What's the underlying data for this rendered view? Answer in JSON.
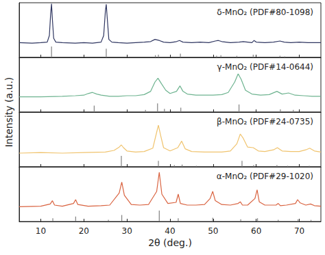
{
  "chart_data": [
    {
      "type": "line",
      "title": "δ-MnO₂ (PDF#80-1098)",
      "xlim": [
        5,
        75
      ],
      "xticks": [
        10,
        20,
        30,
        40,
        50,
        60,
        70
      ],
      "ylim": [
        0,
        100
      ],
      "yticks": [],
      "tick_labels": false,
      "grid": false,
      "series": [
        {
          "type": "line",
          "color": "#2e3560",
          "x": [
            5,
            8,
            10,
            11.5,
            12.0,
            12.3,
            12.5,
            12.7,
            13.0,
            13.5,
            15,
            18,
            20,
            22,
            24,
            24.6,
            25.0,
            25.2,
            25.4,
            25.8,
            26.5,
            28,
            30,
            32,
            34,
            35.5,
            36.5,
            37.5,
            38.5,
            40,
            41.5,
            42.2,
            43,
            45,
            47,
            49,
            50.5,
            51.2,
            52,
            54,
            56,
            57,
            59,
            59.5,
            60,
            62,
            64,
            65.5,
            66.5,
            68,
            70,
            72,
            75
          ],
          "values": [
            27,
            26,
            27,
            28,
            40,
            80,
            98,
            70,
            35,
            28,
            27,
            26,
            27,
            26,
            28,
            40,
            85,
            97,
            75,
            33,
            28,
            27,
            26,
            27,
            28,
            29,
            33,
            31,
            28,
            27,
            29,
            31,
            28,
            27,
            28,
            27,
            30,
            31,
            29,
            27,
            28,
            29,
            27,
            31,
            28,
            27,
            28,
            30,
            28,
            27,
            28,
            27,
            27
          ]
        },
        {
          "type": "bar",
          "color": "#808080",
          "x": [
            12.5,
            25.2,
            36.6,
            37.3,
            42.4,
            50.8,
            51.8,
            55.5,
            59.3,
            65.5,
            66.6
          ],
          "values": [
            20,
            16,
            4,
            5,
            7,
            3,
            4,
            3,
            5,
            3,
            2
          ]
        }
      ]
    },
    {
      "type": "line",
      "title": "γ-MnO₂ (PDF#14-0644)",
      "xlim": [
        5,
        75
      ],
      "xticks": [
        10,
        20,
        30,
        40,
        50,
        60,
        70
      ],
      "ylim": [
        0,
        100
      ],
      "yticks": [],
      "tick_labels": false,
      "grid": false,
      "series": [
        {
          "type": "line",
          "color": "#6db38f",
          "x": [
            5,
            10,
            15,
            18,
            20,
            21,
            22,
            23,
            24,
            26,
            28,
            30,
            32,
            34,
            35.5,
            36.5,
            37.2,
            38,
            39,
            40,
            41.5,
            42.3,
            43,
            44,
            46,
            48,
            50,
            52,
            53.5,
            55,
            55.8,
            56.5,
            57.5,
            59,
            61,
            63,
            64.8,
            66,
            67.5,
            69,
            71,
            73,
            75
          ],
          "values": [
            28,
            28,
            29,
            30,
            31,
            34,
            36,
            33,
            31,
            29,
            29,
            30,
            30,
            32,
            38,
            55,
            62,
            52,
            40,
            34,
            38,
            48,
            38,
            33,
            31,
            31,
            31,
            32,
            36,
            55,
            70,
            60,
            40,
            33,
            31,
            32,
            38,
            33,
            35,
            31,
            30,
            29,
            29
          ]
        },
        {
          "type": "bar",
          "color": "#808080",
          "x": [
            22.4,
            34.3,
            37.1,
            38.7,
            42.5,
            56.0,
            65.6,
            68.6
          ],
          "values": [
            12,
            4,
            16,
            6,
            8,
            14,
            5,
            4
          ]
        }
      ]
    },
    {
      "type": "line",
      "title": "β-MnO₂ (PDF#24-0735)",
      "ylabel": "Intensity (a.u.)",
      "xlim": [
        5,
        75
      ],
      "xticks": [
        10,
        20,
        30,
        40,
        50,
        60,
        70
      ],
      "ylim": [
        0,
        100
      ],
      "yticks": [],
      "tick_labels": false,
      "grid": false,
      "series": [
        {
          "type": "line",
          "color": "#f0c36d",
          "x": [
            5,
            10,
            15,
            20,
            25,
            27,
            28.2,
            28.7,
            29.2,
            30,
            32,
            34,
            36,
            36.8,
            37.3,
            37.8,
            38.5,
            40,
            41.8,
            42.7,
            43.5,
            45,
            48,
            50,
            52,
            54,
            55.5,
            56.3,
            57,
            58,
            59.3,
            60.5,
            62,
            64,
            64.9,
            66,
            68,
            70,
            71.5,
            72.4,
            73.5,
            75
          ],
          "values": [
            25,
            26,
            25,
            26,
            27,
            30,
            36,
            40,
            35,
            29,
            27,
            28,
            34,
            60,
            76,
            58,
            35,
            29,
            35,
            47,
            33,
            28,
            27,
            27,
            27,
            29,
            42,
            60,
            52,
            36,
            35,
            29,
            28,
            31,
            35,
            29,
            28,
            28,
            31,
            34,
            29,
            27
          ]
        },
        {
          "type": "bar",
          "color": "#808080",
          "x": [
            28.7,
            37.3,
            41.0,
            42.8,
            46.1,
            56.7,
            59.4,
            64.8,
            67.3,
            72.3
          ],
          "values": [
            20,
            11,
            3,
            4,
            2,
            11,
            3,
            3,
            2,
            2
          ]
        }
      ]
    },
    {
      "type": "line",
      "title": "α-MnO₂ (PDF#29-1020)",
      "xlabel": "2θ (deg.)",
      "xlim": [
        5,
        75
      ],
      "xticks": [
        10,
        20,
        30,
        40,
        50,
        60,
        70
      ],
      "ylim": [
        0,
        100
      ],
      "yticks": [],
      "tick_labels": "x",
      "grid": false,
      "series": [
        {
          "type": "line",
          "color": "#d9623f",
          "x": [
            5,
            10,
            12.2,
            12.7,
            13.2,
            15,
            17.6,
            18.1,
            18.6,
            21,
            24,
            26,
            28.2,
            28.8,
            29.4,
            31,
            33,
            35,
            36.9,
            37.5,
            38.1,
            39.5,
            41.4,
            41.9,
            42.4,
            44,
            46,
            48,
            49.3,
            49.9,
            50.5,
            52,
            54,
            55.8,
            56.3,
            56.8,
            58,
            59.7,
            60.2,
            60.7,
            62,
            64.6,
            65.1,
            65.6,
            67,
            69.1,
            69.6,
            70.2,
            71.5,
            72.6,
            73.5,
            75
          ],
          "values": [
            27,
            28,
            32,
            38,
            30,
            28,
            33,
            40,
            31,
            28,
            29,
            30,
            52,
            72,
            48,
            31,
            30,
            31,
            55,
            90,
            50,
            33,
            35,
            50,
            33,
            30,
            30,
            31,
            42,
            55,
            38,
            31,
            30,
            33,
            36,
            30,
            30,
            42,
            58,
            36,
            30,
            30,
            33,
            29,
            30,
            33,
            40,
            34,
            30,
            32,
            29,
            28
          ]
        },
        {
          "type": "bar",
          "color": "#808080",
          "x": [
            12.8,
            18.1,
            25.7,
            28.8,
            37.5,
            41.9,
            49.9,
            56.4,
            60.3,
            65.1,
            69.7,
            72.7
          ],
          "values": [
            6,
            9,
            3,
            12,
            20,
            6,
            7,
            4,
            6,
            3,
            4,
            3
          ]
        }
      ]
    }
  ]
}
